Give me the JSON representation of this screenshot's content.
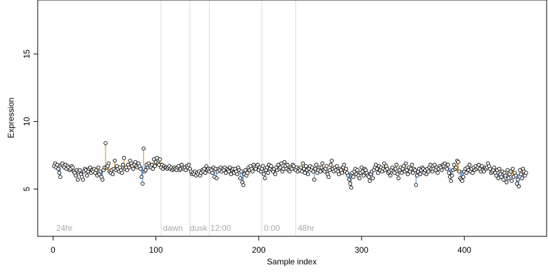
{
  "chart_data": {
    "type": "scatter",
    "title": "",
    "xlabel": "Sample index",
    "ylabel": "Expression",
    "xlim": [
      -15,
      480
    ],
    "ylim": [
      1.5,
      19
    ],
    "x_ticks": [
      0,
      100,
      200,
      300,
      400
    ],
    "y_ticks": [
      5,
      10,
      15
    ],
    "grid": false,
    "legend": "none",
    "baseline_rule": "segments drawn from each point to the local median; orange when above, blue when below",
    "region_boundaries": [
      105,
      133,
      152,
      203,
      236
    ],
    "region_labels": [
      {
        "text": "24hr",
        "x": 3
      },
      {
        "text": "dawn",
        "x": 107
      },
      {
        "text": "dusk",
        "x": 133
      },
      {
        "text": "12:00",
        "x": 153
      },
      {
        "text": "0:00",
        "x": 205
      },
      {
        "text": "48hr",
        "x": 238
      }
    ],
    "x_start": 1,
    "y": [
      6.7,
      6.9,
      6.6,
      6.8,
      6.5,
      6.2,
      5.9,
      6.8,
      6.9,
      6.7,
      6.6,
      6.8,
      6.5,
      6.7,
      6.6,
      6.4,
      6.5,
      6.7,
      6.6,
      6.3,
      6.2,
      6.0,
      6.4,
      5.7,
      6.3,
      6.4,
      6.1,
      5.9,
      5.7,
      6.3,
      6.5,
      6.4,
      6.0,
      6.3,
      6.5,
      6.6,
      6.2,
      6.4,
      6.3,
      6.5,
      6.2,
      6.4,
      6.0,
      6.6,
      6.1,
      6.3,
      5.9,
      5.7,
      6.4,
      6.6,
      8.4,
      6.6,
      6.7,
      6.9,
      6.3,
      6.2,
      6.4,
      6.1,
      6.5,
      7.1,
      6.4,
      6.7,
      6.5,
      6.3,
      6.6,
      6.4,
      6.2,
      6.8,
      7.3,
      6.5,
      6.6,
      6.4,
      6.8,
      6.6,
      7.1,
      6.9,
      6.7,
      6.5,
      6.8,
      7.0,
      6.7,
      6.6,
      6.9,
      6.7,
      6.5,
      5.9,
      5.4,
      8.0,
      6.3,
      6.4,
      6.8,
      6.6,
      6.9,
      6.7,
      6.6,
      6.8,
      6.5,
      7.2,
      6.7,
      7.0,
      7.3,
      6.9,
      6.8,
      7.2,
      6.6,
      6.8,
      6.5,
      6.7,
      6.6,
      6.6,
      6.5,
      6.6,
      6.7,
      6.5,
      6.6,
      6.4,
      6.5,
      6.6,
      6.5,
      6.4,
      6.6,
      6.7,
      6.4,
      6.5,
      6.8,
      6.6,
      6.5,
      6.6,
      6.4,
      6.7,
      6.6,
      6.8,
      6.5,
      6.3,
      6.1,
      6.2,
      6.1,
      6.3,
      6.0,
      6.2,
      6.1,
      6.3,
      6.0,
      6.2,
      6.4,
      6.3,
      6.5,
      6.2,
      6.7,
      6.4,
      6.5,
      6.3,
      6.5,
      6.4,
      6.2,
      6.6,
      5.9,
      6.5,
      5.8,
      6.3,
      6.5,
      6.4,
      6.6,
      6.3,
      6.5,
      6.4,
      6.6,
      6.2,
      6.5,
      6.4,
      6.3,
      6.6,
      6.1,
      6.4,
      6.5,
      6.2,
      6.5,
      6.3,
      6.1,
      6.6,
      6.4,
      5.8,
      6.3,
      5.5,
      5.3,
      6.1,
      6.4,
      6.0,
      6.2,
      6.6,
      6.4,
      6.7,
      6.5,
      6.3,
      6.8,
      6.6,
      6.5,
      6.7,
      6.8,
      6.4,
      6.6,
      6.3,
      6.5,
      6.7,
      6.1,
      5.8,
      6.4,
      6.6,
      6.2,
      6.8,
      6.5,
      6.7,
      6.4,
      6.3,
      6.5,
      6.1,
      6.6,
      6.4,
      6.8,
      6.5,
      6.6,
      6.9,
      6.3,
      6.5,
      7.0,
      6.7,
      6.5,
      6.8,
      6.4,
      6.3,
      6.6,
      6.5,
      6.8,
      6.7,
      6.5,
      6.4,
      6.6,
      6.3,
      6.5,
      6.4,
      6.6,
      6.3,
      6.9,
      6.5,
      6.2,
      6.7,
      6.4,
      6.1,
      6.5,
      6.7,
      6.4,
      6.6,
      6.3,
      5.7,
      6.5,
      6.8,
      6.2,
      6.4,
      6.6,
      6.3,
      6.6,
      6.9,
      6.4,
      6.3,
      6.5,
      6.7,
      6.1,
      5.9,
      6.4,
      6.8,
      7.1,
      6.5,
      6.3,
      6.6,
      6.4,
      6.7,
      6.3,
      6.1,
      6.5,
      6.4,
      6.2,
      6.6,
      6.8,
      6.3,
      6.5,
      6.2,
      6.0,
      5.7,
      5.4,
      5.1,
      6.2,
      5.9,
      6.3,
      6.5,
      6.1,
      6.4,
      6.0,
      5.8,
      6.2,
      6.6,
      6.3,
      6.0,
      6.5,
      6.4,
      6.2,
      6.0,
      5.9,
      5.6,
      6.1,
      6.3,
      5.8,
      6.4,
      6.6,
      6.8,
      6.5,
      6.2,
      6.7,
      6.4,
      6.6,
      6.3,
      6.5,
      6.9,
      6.4,
      6.7,
      6.5,
      6.2,
      6.3,
      6.0,
      6.4,
      6.6,
      6.3,
      6.2,
      6.5,
      6.8,
      6.1,
      5.8,
      6.4,
      6.6,
      6.2,
      6.5,
      6.7,
      6.3,
      6.9,
      6.4,
      6.1,
      6.6,
      6.3,
      6.5,
      6.8,
      6.2,
      6.5,
      6.4,
      5.3,
      6.0,
      6.3,
      6.5,
      6.1,
      6.4,
      6.6,
      6.5,
      6.2,
      6.4,
      6.1,
      6.5,
      6.3,
      6.6,
      6.8,
      6.5,
      6.3,
      6.5,
      6.8,
      6.4,
      6.6,
      6.2,
      6.5,
      6.7,
      6.6,
      6.4,
      6.8,
      6.7,
      6.9,
      6.6,
      6.5,
      6.8,
      6.2,
      5.9,
      5.6,
      6.0,
      6.4,
      6.8,
      6.5,
      6.6,
      7.1,
      7.0,
      6.3,
      5.8,
      5.7,
      5.6,
      5.9,
      6.3,
      6.5,
      6.2,
      6.6,
      6.4,
      6.8,
      6.3,
      6.5,
      6.2,
      6.6,
      6.4,
      6.7,
      6.5,
      6.6,
      6.8,
      6.5,
      6.3,
      6.7,
      6.4,
      6.3,
      6.6,
      6.5,
      6.6,
      6.9,
      6.7,
      6.5,
      6.2,
      6.3,
      6.4,
      6.6,
      6.2,
      6.0,
      6.4,
      5.8,
      6.5,
      6.1,
      5.9,
      6.3,
      5.7,
      6.2,
      6.0,
      5.5,
      6.4,
      5.8,
      6.1,
      6.3,
      5.6,
      6.5,
      5.9,
      6.2,
      6.0,
      5.4,
      5.7,
      5.2,
      6.4,
      6.1,
      5.8,
      6.5,
      6.3,
      6.0,
      6.2
    ],
    "colors": {
      "above": "#e69f38",
      "below": "#6f9fd8",
      "region_line": "#d9d9d9",
      "region_label": "#a8a8a8",
      "point_stroke": "#000000",
      "point_fill": "#ffffff"
    }
  }
}
